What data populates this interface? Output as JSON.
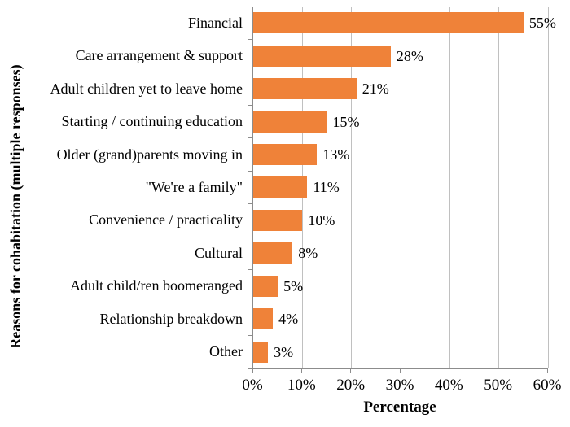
{
  "chart_data": {
    "type": "bar",
    "orientation": "horizontal",
    "title": "",
    "xlabel": "Percentage",
    "ylabel": "Reasons for cohabitation (multiple responses)",
    "categories": [
      "Financial",
      "Care arrangement & support",
      "Adult children yet to leave home",
      "Starting / continuing education",
      "Older (grand)parents moving in",
      "\"We're a family\"",
      "Convenience / practicality",
      "Cultural",
      "Adult child/ren boomeranged",
      "Relationship breakdown",
      "Other"
    ],
    "values": [
      55,
      28,
      21,
      15,
      13,
      11,
      10,
      8,
      5,
      4,
      3
    ],
    "value_labels": [
      "55%",
      "28%",
      "21%",
      "15%",
      "13%",
      "11%",
      "10%",
      "8%",
      "5%",
      "4%",
      "3%"
    ],
    "x_ticks": [
      "0%",
      "10%",
      "20%",
      "30%",
      "40%",
      "50%",
      "60%"
    ],
    "x_tick_values": [
      0,
      10,
      20,
      30,
      40,
      50,
      60
    ],
    "xlim": [
      0,
      60
    ],
    "grid": true,
    "legend": false,
    "colors": {
      "bar": "#EF8239",
      "gridline": "#C0C0C0",
      "axis": "#8C8C8C",
      "text": "#000000",
      "background": "#FFFFFF"
    }
  }
}
